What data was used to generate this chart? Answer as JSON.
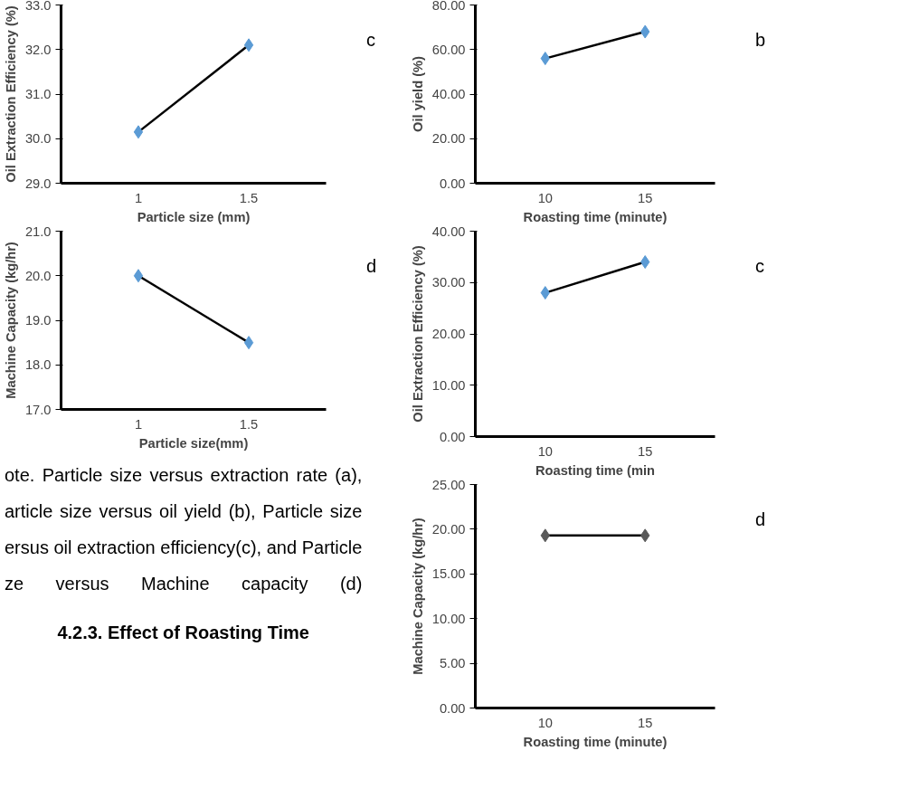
{
  "chart_data": [
    {
      "type": "line",
      "ylabel": "Oil Extraction Efficiency (%)",
      "xlabel": "Particle size (mm)",
      "categories": [
        "1",
        "1.5"
      ],
      "series": [
        {
          "color": "#5b9bd5",
          "values": [
            30.15,
            32.1
          ]
        }
      ],
      "ylim": [
        29,
        33
      ],
      "yticks": [
        {
          "value": 29,
          "label": "29.0"
        },
        {
          "value": 30,
          "label": "30.0"
        },
        {
          "value": 31,
          "label": "31.0"
        },
        {
          "value": 32,
          "label": "32.0"
        },
        {
          "value": 33,
          "label": "33.0"
        }
      ],
      "marker": "diamond",
      "grid": false,
      "annotations": [
        "c"
      ]
    },
    {
      "type": "line",
      "ylabel": "Machine Capacity (kg/hr)",
      "xlabel": "Particle size(mm)",
      "categories": [
        "1",
        "1.5"
      ],
      "series": [
        {
          "color": "#5b9bd5",
          "values": [
            20.0,
            18.5
          ]
        }
      ],
      "ylim": [
        17,
        21
      ],
      "yticks": [
        {
          "value": 17,
          "label": "17.0"
        },
        {
          "value": 18,
          "label": "18.0"
        },
        {
          "value": 19,
          "label": "19.0"
        },
        {
          "value": 20,
          "label": "20.0"
        },
        {
          "value": 21,
          "label": "21.0"
        }
      ],
      "marker": "diamond",
      "grid": false,
      "annotations": [
        "d"
      ]
    },
    {
      "type": "other",
      "annotations": [
        "ote. Particle size versus extraction rate (a),",
        "article size versus oil yield (b), Particle size",
        "ersus oil extraction efficiency(c), and Particle",
        "ze versus Machine capacity (d)",
        "4.2.3. Effect of Roasting Time"
      ]
    },
    {
      "type": "line",
      "ylabel": "Oil yield (%)",
      "xlabel": "Roasting time (minute)",
      "categories": [
        "10",
        "15"
      ],
      "series": [
        {
          "color": "#5b9bd5",
          "values": [
            56,
            68
          ]
        }
      ],
      "ylim": [
        0,
        80
      ],
      "yticks": [
        {
          "value": 0,
          "label": "0.00"
        },
        {
          "value": 20,
          "label": "20.00"
        },
        {
          "value": 40,
          "label": "40.00"
        },
        {
          "value": 60,
          "label": "60.00"
        },
        {
          "value": 80,
          "label": "80.00"
        }
      ],
      "marker": "diamond",
      "grid": false,
      "annotations": [
        "b"
      ]
    },
    {
      "type": "line",
      "ylabel": "Oil Extraction Efficiency (%)",
      "xlabel": "Roasting time (min",
      "categories": [
        "10",
        "15"
      ],
      "series": [
        {
          "color": "#5b9bd5",
          "values": [
            28,
            34
          ]
        }
      ],
      "ylim": [
        0,
        40
      ],
      "yticks": [
        {
          "value": 0,
          "label": "0.00"
        },
        {
          "value": 10,
          "label": "10.00"
        },
        {
          "value": 20,
          "label": "20.00"
        },
        {
          "value": 30,
          "label": "30.00"
        },
        {
          "value": 40,
          "label": "40.00"
        }
      ],
      "marker": "diamond",
      "grid": false,
      "annotations": [
        "c"
      ]
    },
    {
      "type": "line",
      "ylabel": "Machine Capacity (kg/hr)",
      "xlabel": "Roasting time (minute)",
      "categories": [
        "10",
        "15"
      ],
      "series": [
        {
          "color": "#595959",
          "values": [
            19.3,
            19.3
          ]
        }
      ],
      "ylim": [
        0,
        25
      ],
      "yticks": [
        {
          "value": 0,
          "label": "0.00"
        },
        {
          "value": 5,
          "label": "5.00"
        },
        {
          "value": 10,
          "label": "10.00"
        },
        {
          "value": 15,
          "label": "15.00"
        },
        {
          "value": 20,
          "label": "20.00"
        },
        {
          "value": 25,
          "label": "25.00"
        }
      ],
      "marker": "diamond",
      "grid": false,
      "annotations": [
        "d"
      ]
    }
  ]
}
